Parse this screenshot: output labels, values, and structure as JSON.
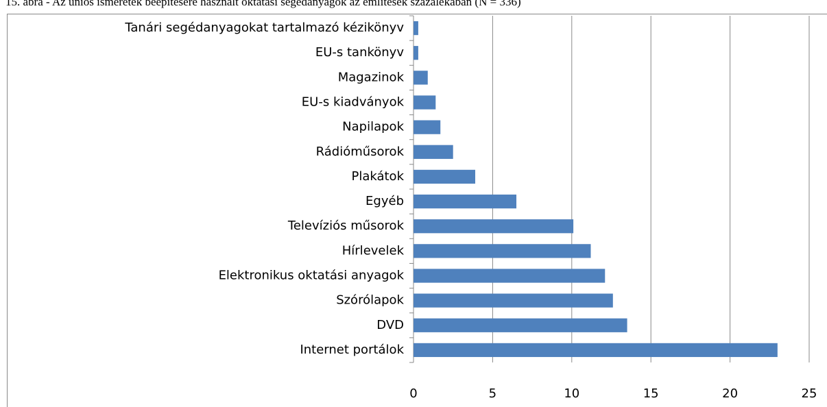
{
  "chart_data": {
    "type": "barh",
    "title": "15. ábra - Az uniós ismeretek beépítésére használt oktatási segédanyagok az említések százalékában (N = 336)",
    "categories": [
      "Tanári segédanyagokat tartalmazó kézikönyv",
      "EU-s tankönyv",
      "Magazinok",
      "EU-s kiadványok",
      "Napilapok",
      "Rádióműsorok",
      "Plakátok",
      "Egyéb",
      "Televíziós műsorok",
      "Hírlevelek",
      "Elektronikus oktatási anyagok",
      "Szórólapok",
      "DVD",
      "Internet portálok"
    ],
    "values": [
      0.3,
      0.3,
      0.9,
      1.4,
      1.7,
      2.5,
      3.9,
      6.5,
      10.1,
      11.2,
      12.1,
      12.6,
      13.5,
      23.0
    ],
    "color": "#4f81bd",
    "xlim": [
      0,
      25
    ],
    "xticks": [
      0,
      5,
      10,
      15,
      20,
      25
    ],
    "grid": true
  }
}
